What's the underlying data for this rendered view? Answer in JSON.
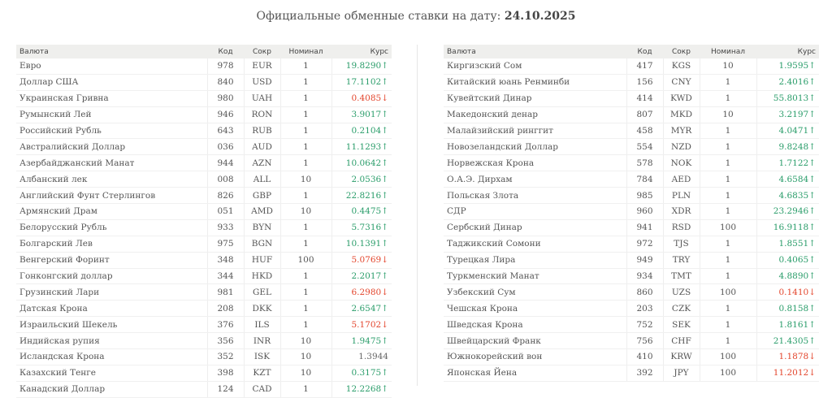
{
  "header": {
    "title_prefix": "Официальные обменные ставки на дату:",
    "date": "24.10.2025"
  },
  "columns": {
    "name": "Валюта",
    "code": "Код",
    "abbr": "Сокр",
    "nominal": "Номинал",
    "rate": "Курс"
  },
  "colors": {
    "up": "#2a9d6a",
    "down": "#e3452c"
  },
  "left_rows": [
    {
      "name": "Евро",
      "code": "978",
      "abbr": "EUR",
      "nominal": "1",
      "rate": "19.8290",
      "dir": "up"
    },
    {
      "name": "Доллар США",
      "code": "840",
      "abbr": "USD",
      "nominal": "1",
      "rate": "17.1102",
      "dir": "up"
    },
    {
      "name": "Украинская Гривна",
      "code": "980",
      "abbr": "UAH",
      "nominal": "1",
      "rate": "0.4085",
      "dir": "down"
    },
    {
      "name": "Румынский Лей",
      "code": "946",
      "abbr": "RON",
      "nominal": "1",
      "rate": "3.9017",
      "dir": "up"
    },
    {
      "name": "Российский Рубль",
      "code": "643",
      "abbr": "RUB",
      "nominal": "1",
      "rate": "0.2104",
      "dir": "up"
    },
    {
      "name": "Австралийский Доллар",
      "code": "036",
      "abbr": "AUD",
      "nominal": "1",
      "rate": "11.1293",
      "dir": "up"
    },
    {
      "name": "Азербайджанский Манат",
      "code": "944",
      "abbr": "AZN",
      "nominal": "1",
      "rate": "10.0642",
      "dir": "up"
    },
    {
      "name": "Албанский лек",
      "code": "008",
      "abbr": "ALL",
      "nominal": "10",
      "rate": "2.0536",
      "dir": "up"
    },
    {
      "name": "Английский Фунт Стерлингов",
      "code": "826",
      "abbr": "GBP",
      "nominal": "1",
      "rate": "22.8216",
      "dir": "up"
    },
    {
      "name": "Армянский Драм",
      "code": "051",
      "abbr": "AMD",
      "nominal": "10",
      "rate": "0.4475",
      "dir": "up"
    },
    {
      "name": "Белорусский Рубль",
      "code": "933",
      "abbr": "BYN",
      "nominal": "1",
      "rate": "5.7316",
      "dir": "up"
    },
    {
      "name": "Болгарский Лев",
      "code": "975",
      "abbr": "BGN",
      "nominal": "1",
      "rate": "10.1391",
      "dir": "up"
    },
    {
      "name": "Венгерский Форинт",
      "code": "348",
      "abbr": "HUF",
      "nominal": "100",
      "rate": "5.0769",
      "dir": "down"
    },
    {
      "name": "Гонконгский доллар",
      "code": "344",
      "abbr": "HKD",
      "nominal": "1",
      "rate": "2.2017",
      "dir": "up"
    },
    {
      "name": "Грузинский Лари",
      "code": "981",
      "abbr": "GEL",
      "nominal": "1",
      "rate": "6.2980",
      "dir": "down"
    },
    {
      "name": "Датская Крона",
      "code": "208",
      "abbr": "DKK",
      "nominal": "1",
      "rate": "2.6547",
      "dir": "up"
    },
    {
      "name": "Израильский Шекель",
      "code": "376",
      "abbr": "ILS",
      "nominal": "1",
      "rate": "5.1702",
      "dir": "down"
    },
    {
      "name": "Индийская рупия",
      "code": "356",
      "abbr": "INR",
      "nominal": "10",
      "rate": "1.9475",
      "dir": "up"
    },
    {
      "name": "Исландская Крона",
      "code": "352",
      "abbr": "ISK",
      "nominal": "10",
      "rate": "1.3944",
      "dir": "none"
    },
    {
      "name": "Казахский Тенге",
      "code": "398",
      "abbr": "KZT",
      "nominal": "10",
      "rate": "0.3175",
      "dir": "up"
    },
    {
      "name": "Канадский Доллар",
      "code": "124",
      "abbr": "CAD",
      "nominal": "1",
      "rate": "12.2268",
      "dir": "up"
    }
  ],
  "right_rows": [
    {
      "name": "Киргизский Сом",
      "code": "417",
      "abbr": "KGS",
      "nominal": "10",
      "rate": "1.9595",
      "dir": "up"
    },
    {
      "name": "Китайский юань Ренминби",
      "code": "156",
      "abbr": "CNY",
      "nominal": "1",
      "rate": "2.4016",
      "dir": "up"
    },
    {
      "name": "Кувейтский Динар",
      "code": "414",
      "abbr": "KWD",
      "nominal": "1",
      "rate": "55.8013",
      "dir": "up"
    },
    {
      "name": "Македонский денар",
      "code": "807",
      "abbr": "MKD",
      "nominal": "10",
      "rate": "3.2197",
      "dir": "up"
    },
    {
      "name": "Малайзийский ринггит",
      "code": "458",
      "abbr": "MYR",
      "nominal": "1",
      "rate": "4.0471",
      "dir": "up"
    },
    {
      "name": "Новозеландский Доллар",
      "code": "554",
      "abbr": "NZD",
      "nominal": "1",
      "rate": "9.8248",
      "dir": "up"
    },
    {
      "name": "Норвежская Крона",
      "code": "578",
      "abbr": "NOK",
      "nominal": "1",
      "rate": "1.7122",
      "dir": "up"
    },
    {
      "name": "О.А.Э. Дирхам",
      "code": "784",
      "abbr": "AED",
      "nominal": "1",
      "rate": "4.6584",
      "dir": "up"
    },
    {
      "name": "Польская Злота",
      "code": "985",
      "abbr": "PLN",
      "nominal": "1",
      "rate": "4.6835",
      "dir": "up"
    },
    {
      "name": "СДР",
      "code": "960",
      "abbr": "XDR",
      "nominal": "1",
      "rate": "23.2946",
      "dir": "up"
    },
    {
      "name": "Сербский Динар",
      "code": "941",
      "abbr": "RSD",
      "nominal": "100",
      "rate": "16.9118",
      "dir": "up"
    },
    {
      "name": "Таджикский Сомони",
      "code": "972",
      "abbr": "TJS",
      "nominal": "1",
      "rate": "1.8551",
      "dir": "up"
    },
    {
      "name": "Турецкая Лира",
      "code": "949",
      "abbr": "TRY",
      "nominal": "1",
      "rate": "0.4065",
      "dir": "up"
    },
    {
      "name": "Туркменский Манат",
      "code": "934",
      "abbr": "TMT",
      "nominal": "1",
      "rate": "4.8890",
      "dir": "up"
    },
    {
      "name": "Узбекский Сум",
      "code": "860",
      "abbr": "UZS",
      "nominal": "100",
      "rate": "0.1410",
      "dir": "down"
    },
    {
      "name": "Чешская Крона",
      "code": "203",
      "abbr": "CZK",
      "nominal": "1",
      "rate": "0.8158",
      "dir": "up"
    },
    {
      "name": "Шведская Крона",
      "code": "752",
      "abbr": "SEK",
      "nominal": "1",
      "rate": "1.8161",
      "dir": "up"
    },
    {
      "name": "Швейцарский Франк",
      "code": "756",
      "abbr": "CHF",
      "nominal": "1",
      "rate": "21.4305",
      "dir": "up"
    },
    {
      "name": "Южнокорейский вон",
      "code": "410",
      "abbr": "KRW",
      "nominal": "100",
      "rate": "1.1878",
      "dir": "down"
    },
    {
      "name": "Японская Йена",
      "code": "392",
      "abbr": "JPY",
      "nominal": "100",
      "rate": "11.2012",
      "dir": "down"
    }
  ]
}
